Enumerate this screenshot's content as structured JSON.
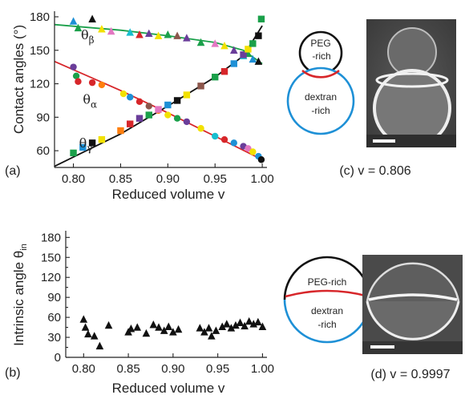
{
  "colors": {
    "axis": "#222222",
    "fit_alpha": "#d7262a",
    "fit_beta": "#1aa04a",
    "fit_gamma": "#111111",
    "peg_phase": "#111111",
    "dextran_phase": "#1e90d6",
    "interface": "#d7262a",
    "marker_b": "#111111",
    "micrograph_light": "#e6e6e6",
    "micrograph_dark": "#4a4a4a"
  },
  "chart_data": [
    {
      "type": "scatter",
      "panel_label": "(a)",
      "xlabel": "Reduced volume v",
      "ylabel": "Contact angles (°)",
      "xlim": [
        0.78,
        1.005
      ],
      "ylim": [
        45,
        185
      ],
      "xticks": [
        0.8,
        0.85,
        0.9,
        0.95,
        1.0
      ],
      "xtick_labels": [
        "0.80",
        "0.85",
        "0.90",
        "0.95",
        "1.00"
      ],
      "yticks": [
        60,
        90,
        120,
        150,
        180
      ],
      "ytick_labels": [
        "60",
        "90",
        "120",
        "150",
        "180"
      ],
      "grid": false,
      "annotations": [
        {
          "symbol": "θ",
          "subscript": "β",
          "x": 0.808,
          "y": 160
        },
        {
          "symbol": "θ",
          "subscript": "α",
          "x": 0.81,
          "y": 102
        },
        {
          "symbol": "θ",
          "subscript": "γ",
          "x": 0.806,
          "y": 63
        }
      ],
      "fit_lines": [
        {
          "angle": "alpha",
          "color": "#d7262a",
          "x": [
            0.78,
            0.85,
            0.9,
            0.95,
            1.0
          ],
          "y": [
            140,
            114,
            94,
            73,
            52
          ]
        },
        {
          "angle": "beta",
          "color": "#1aa04a",
          "x": [
            0.78,
            0.85,
            0.9,
            0.95,
            0.98,
            1.0
          ],
          "y": [
            173,
            168,
            163,
            157,
            150,
            138
          ]
        },
        {
          "angle": "gamma",
          "color": "#111111",
          "x": [
            0.78,
            0.85,
            0.9,
            0.95,
            0.98,
            1.0
          ],
          "y": [
            46,
            75,
            100,
            126,
            145,
            172
          ]
        }
      ],
      "series": [
        {
          "angle": "alpha",
          "marker": "circle",
          "points": [
            {
              "x": 0.8,
              "y": 135,
              "c": "#6a3d9a"
            },
            {
              "x": 0.803,
              "y": 127,
              "c": "#1aa04a"
            },
            {
              "x": 0.805,
              "y": 122,
              "c": "#d7262a"
            },
            {
              "x": 0.82,
              "y": 121,
              "c": "#d7262a"
            },
            {
              "x": 0.83,
              "y": 119,
              "c": "#ff7f0e"
            },
            {
              "x": 0.853,
              "y": 111,
              "c": "#f2e100"
            },
            {
              "x": 0.86,
              "y": 108,
              "c": "#1e90d6"
            },
            {
              "x": 0.87,
              "y": 104,
              "c": "#d7262a"
            },
            {
              "x": 0.88,
              "y": 100,
              "c": "#8c564b"
            },
            {
              "x": 0.89,
              "y": 96,
              "c": "#ff7f0e"
            },
            {
              "x": 0.9,
              "y": 92,
              "c": "#f2e100"
            },
            {
              "x": 0.91,
              "y": 89,
              "c": "#1aa04a"
            },
            {
              "x": 0.92,
              "y": 86,
              "c": "#6a3d9a"
            },
            {
              "x": 0.935,
              "y": 80,
              "c": "#f2e100"
            },
            {
              "x": 0.95,
              "y": 73,
              "c": "#17becf"
            },
            {
              "x": 0.96,
              "y": 70,
              "c": "#d7262a"
            },
            {
              "x": 0.97,
              "y": 67,
              "c": "#1e90d6"
            },
            {
              "x": 0.98,
              "y": 64,
              "c": "#6a3d9a"
            },
            {
              "x": 0.985,
              "y": 62,
              "c": "#e377c2"
            },
            {
              "x": 0.99,
              "y": 59,
              "c": "#f2e100"
            },
            {
              "x": 0.996,
              "y": 55,
              "c": "#1e90d6"
            },
            {
              "x": 0.999,
              "y": 52,
              "c": "#111111"
            }
          ]
        },
        {
          "angle": "beta",
          "marker": "triangle",
          "points": [
            {
              "x": 0.8,
              "y": 176,
              "c": "#1e90d6"
            },
            {
              "x": 0.805,
              "y": 170,
              "c": "#1aa04a"
            },
            {
              "x": 0.82,
              "y": 178,
              "c": "#111111"
            },
            {
              "x": 0.83,
              "y": 169,
              "c": "#f2e100"
            },
            {
              "x": 0.84,
              "y": 167,
              "c": "#e377c2"
            },
            {
              "x": 0.86,
              "y": 166,
              "c": "#17becf"
            },
            {
              "x": 0.87,
              "y": 164,
              "c": "#d7262a"
            },
            {
              "x": 0.88,
              "y": 165,
              "c": "#6a3d9a"
            },
            {
              "x": 0.89,
              "y": 163,
              "c": "#f2e100"
            },
            {
              "x": 0.9,
              "y": 164,
              "c": "#1aa04a"
            },
            {
              "x": 0.91,
              "y": 163,
              "c": "#8c564b"
            },
            {
              "x": 0.92,
              "y": 161,
              "c": "#6a3d9a"
            },
            {
              "x": 0.935,
              "y": 157,
              "c": "#1aa04a"
            },
            {
              "x": 0.95,
              "y": 156,
              "c": "#e377c2"
            },
            {
              "x": 0.96,
              "y": 154,
              "c": "#f2e100"
            },
            {
              "x": 0.97,
              "y": 150,
              "c": "#6a3d9a"
            },
            {
              "x": 0.98,
              "y": 145,
              "c": "#17becf"
            },
            {
              "x": 0.985,
              "y": 147,
              "c": "#1aa04a"
            },
            {
              "x": 0.99,
              "y": 142,
              "c": "#1e90d6"
            },
            {
              "x": 0.996,
              "y": 140,
              "c": "#111111"
            }
          ]
        },
        {
          "angle": "gamma",
          "marker": "square",
          "points": [
            {
              "x": 0.8,
              "y": 58,
              "c": "#1aa04a"
            },
            {
              "x": 0.81,
              "y": 63,
              "c": "#1e90d6"
            },
            {
              "x": 0.82,
              "y": 67,
              "c": "#111111"
            },
            {
              "x": 0.83,
              "y": 70,
              "c": "#f2e100"
            },
            {
              "x": 0.85,
              "y": 78,
              "c": "#ff7f0e"
            },
            {
              "x": 0.86,
              "y": 84,
              "c": "#d7262a"
            },
            {
              "x": 0.87,
              "y": 89,
              "c": "#6a3d9a"
            },
            {
              "x": 0.88,
              "y": 92,
              "c": "#1aa04a"
            },
            {
              "x": 0.89,
              "y": 97,
              "c": "#e377c2"
            },
            {
              "x": 0.9,
              "y": 101,
              "c": "#1e90d6"
            },
            {
              "x": 0.91,
              "y": 105,
              "c": "#111111"
            },
            {
              "x": 0.92,
              "y": 110,
              "c": "#f2e100"
            },
            {
              "x": 0.935,
              "y": 118,
              "c": "#8c564b"
            },
            {
              "x": 0.95,
              "y": 126,
              "c": "#1aa04a"
            },
            {
              "x": 0.96,
              "y": 131,
              "c": "#d7262a"
            },
            {
              "x": 0.97,
              "y": 138,
              "c": "#1e90d6"
            },
            {
              "x": 0.98,
              "y": 146,
              "c": "#6a3d9a"
            },
            {
              "x": 0.985,
              "y": 151,
              "c": "#f2e100"
            },
            {
              "x": 0.99,
              "y": 156,
              "c": "#1aa04a"
            },
            {
              "x": 0.996,
              "y": 163,
              "c": "#111111"
            },
            {
              "x": 0.999,
              "y": 178,
              "c": "#1aa04a"
            }
          ]
        }
      ]
    },
    {
      "type": "scatter",
      "panel_label": "(b)",
      "xlabel": "Reduced volume v",
      "ylabel_prefix": "Intrinsic angle θ",
      "ylabel_subscript": "in",
      "xlim": [
        0.78,
        1.005
      ],
      "ylim": [
        0,
        190
      ],
      "xticks": [
        0.8,
        0.85,
        0.9,
        0.95,
        1.0
      ],
      "xtick_labels": [
        "0.80",
        "0.85",
        "0.90",
        "0.95",
        "1.00"
      ],
      "yticks": [
        0,
        15,
        30,
        45,
        60,
        75,
        90,
        105,
        120,
        135,
        150,
        165,
        180
      ],
      "ytick_labels": [
        "0",
        "",
        "30",
        "",
        "60",
        "",
        "90",
        "",
        "120",
        "",
        "150",
        "",
        "180"
      ],
      "grid": false,
      "marker": "triangle",
      "marker_color": "#111111",
      "points": [
        {
          "x": 0.8,
          "y": 57
        },
        {
          "x": 0.802,
          "y": 45
        },
        {
          "x": 0.805,
          "y": 35
        },
        {
          "x": 0.812,
          "y": 32
        },
        {
          "x": 0.818,
          "y": 17
        },
        {
          "x": 0.828,
          "y": 48
        },
        {
          "x": 0.85,
          "y": 38
        },
        {
          "x": 0.853,
          "y": 43
        },
        {
          "x": 0.86,
          "y": 45
        },
        {
          "x": 0.87,
          "y": 36
        },
        {
          "x": 0.878,
          "y": 49
        },
        {
          "x": 0.884,
          "y": 45
        },
        {
          "x": 0.89,
          "y": 40
        },
        {
          "x": 0.895,
          "y": 46
        },
        {
          "x": 0.9,
          "y": 38
        },
        {
          "x": 0.906,
          "y": 42
        },
        {
          "x": 0.93,
          "y": 44
        },
        {
          "x": 0.935,
          "y": 38
        },
        {
          "x": 0.94,
          "y": 44
        },
        {
          "x": 0.943,
          "y": 32
        },
        {
          "x": 0.948,
          "y": 40
        },
        {
          "x": 0.955,
          "y": 46
        },
        {
          "x": 0.96,
          "y": 50
        },
        {
          "x": 0.965,
          "y": 44
        },
        {
          "x": 0.97,
          "y": 48
        },
        {
          "x": 0.975,
          "y": 52
        },
        {
          "x": 0.98,
          "y": 47
        },
        {
          "x": 0.985,
          "y": 54
        },
        {
          "x": 0.99,
          "y": 50
        },
        {
          "x": 0.995,
          "y": 53
        },
        {
          "x": 1.0,
          "y": 46
        }
      ]
    }
  ],
  "schematics": {
    "c": {
      "top_label_1": "PEG",
      "top_label_2": "-rich",
      "bottom_label_1": "dextran",
      "bottom_label_2": "-rich"
    },
    "d": {
      "top_label": "PEG-rich",
      "bottom_label_1": "dextran",
      "bottom_label_2": "-rich"
    }
  },
  "captions": {
    "c": "(c) v = 0.806",
    "d": "(d) v = 0.9997"
  }
}
